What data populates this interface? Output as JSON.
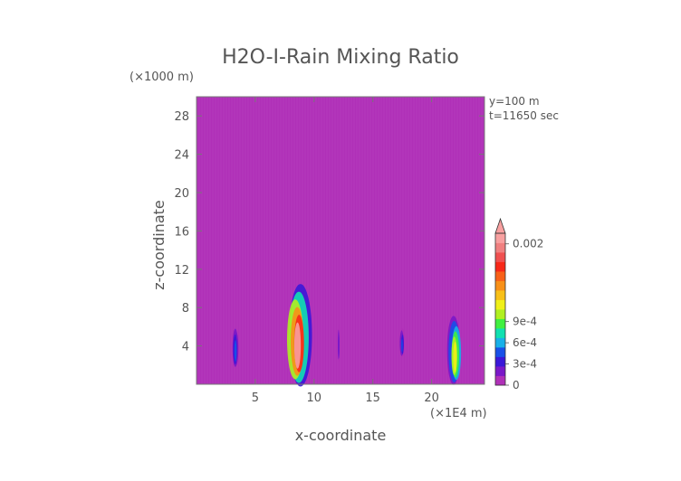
{
  "chart_data": {
    "type": "heatmap",
    "title": "H2O-I-Rain Mixing Ratio",
    "xlabel": "x-coordinate",
    "ylabel": "z-coordinate",
    "x_scale_note": "(×1E4 m)",
    "y_scale_note": "(×1000 m)",
    "annotations": [
      "y=100 m",
      "t=11650 sec"
    ],
    "xlim": [
      0,
      24.5
    ],
    "ylim": [
      0,
      30
    ],
    "x_ticks": [
      "5",
      "10",
      "15",
      "20"
    ],
    "x_tick_values": [
      5,
      10,
      15,
      20
    ],
    "y_ticks": [
      "4",
      "8",
      "12",
      "16",
      "20",
      "24",
      "28"
    ],
    "y_tick_values": [
      4,
      8,
      12,
      16,
      20,
      24,
      28
    ],
    "background_color": "#b030b8",
    "colorbar": {
      "range": [
        0,
        0.00215
      ],
      "labels": [
        "0",
        "3e-4",
        "6e-4",
        "9e-4",
        "0.002"
      ],
      "label_values": [
        0,
        0.0003,
        0.0006,
        0.0009,
        0.002
      ],
      "colors": [
        "#b030b8",
        "#7a18c8",
        "#3a18d8",
        "#1850e8",
        "#18b0e8",
        "#10e0b0",
        "#40f040",
        "#b0f020",
        "#f0f018",
        "#f8c018",
        "#f89018",
        "#f86018",
        "#f82818",
        "#f05050",
        "#f08080",
        "#f8a0a0"
      ]
    },
    "features": [
      {
        "x": 3.3,
        "z": [
          2.0,
          6.0
        ],
        "max": 0.0005
      },
      {
        "x": 8.6,
        "z": [
          0.3,
          11.0
        ],
        "max": 0.0021
      },
      {
        "x": 12.1,
        "z": [
          2.5,
          6.5
        ],
        "max": 0.0002
      },
      {
        "x": 17.5,
        "z": [
          3.0,
          6.0
        ],
        "max": 0.0004
      },
      {
        "x": 22.0,
        "z": [
          0.3,
          7.5
        ],
        "max": 0.0012
      }
    ]
  }
}
